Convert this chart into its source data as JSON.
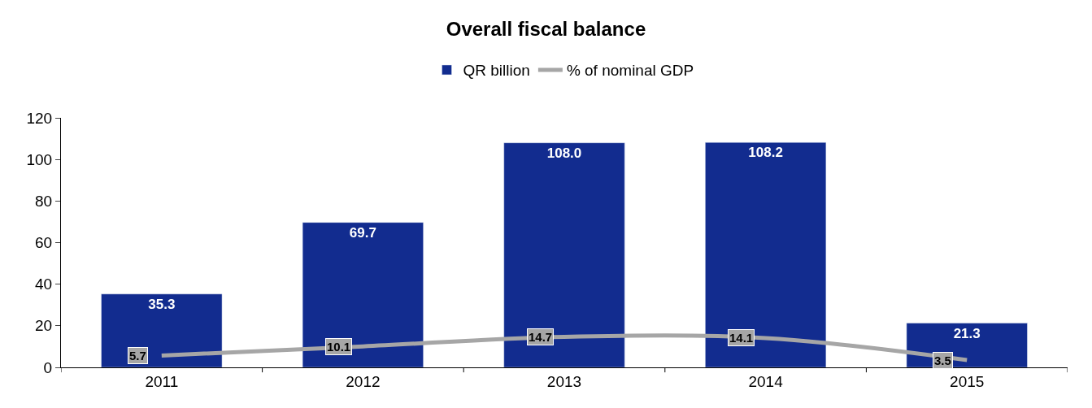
{
  "chart_data": {
    "type": "bar",
    "title": "Overall fiscal balance",
    "categories": [
      "2011",
      "2012",
      "2013",
      "2014",
      "2015"
    ],
    "series": [
      {
        "name": "QR billion",
        "color": "#122c8f",
        "values": [
          35.3,
          69.7,
          108.0,
          108.2,
          21.3
        ],
        "value_labels": [
          "35.3",
          "69.7",
          "108.0",
          "108.2",
          "21.3"
        ]
      },
      {
        "name": "% of nominal GDP",
        "type": "line",
        "color": "#a6a6a6",
        "values": [
          5.7,
          10.1,
          14.7,
          14.1,
          3.5
        ],
        "value_labels": [
          "5.7",
          "10.1",
          "14.7",
          "14.1",
          "3.5"
        ]
      }
    ],
    "ylim": [
      0,
      120
    ],
    "yticks": [
      0,
      20,
      40,
      60,
      80,
      100,
      120
    ],
    "legend": "top"
  }
}
